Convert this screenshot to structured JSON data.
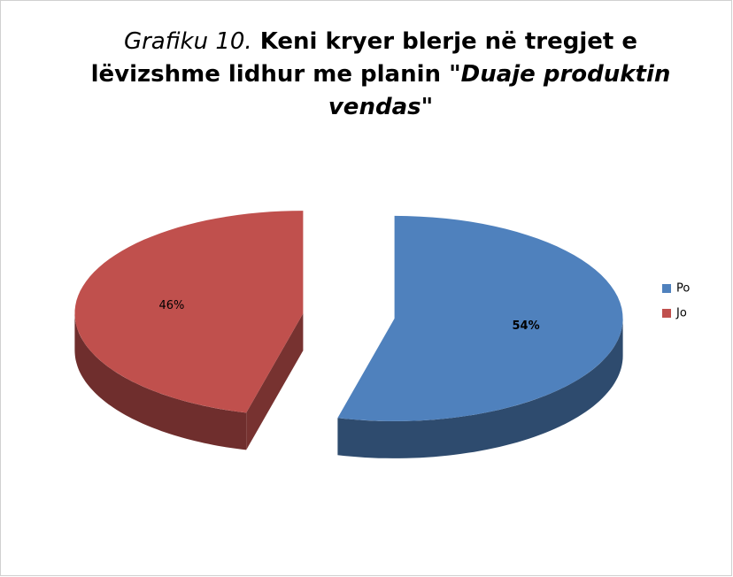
{
  "chart_data": {
    "type": "pie3d",
    "title": [
      [
        {
          "text": "Grafiku 10.",
          "style": "italic"
        },
        {
          "text": " Keni kryer blerje në tregjet e",
          "style": "bold"
        }
      ],
      [
        {
          "text": "lëvizshme lidhur me planin ",
          "style": "bold"
        },
        {
          "text": "\"Duaje produktin",
          "style": "bold-italic"
        }
      ],
      [
        {
          "text": "vendas\"",
          "style": "bold-italic"
        }
      ]
    ],
    "categories": [
      "Po",
      "Jo"
    ],
    "values": [
      54,
      46
    ],
    "value_labels": [
      "54%",
      "46%"
    ],
    "colors": [
      "#4f81bd",
      "#c0504d"
    ],
    "legend": "right"
  }
}
